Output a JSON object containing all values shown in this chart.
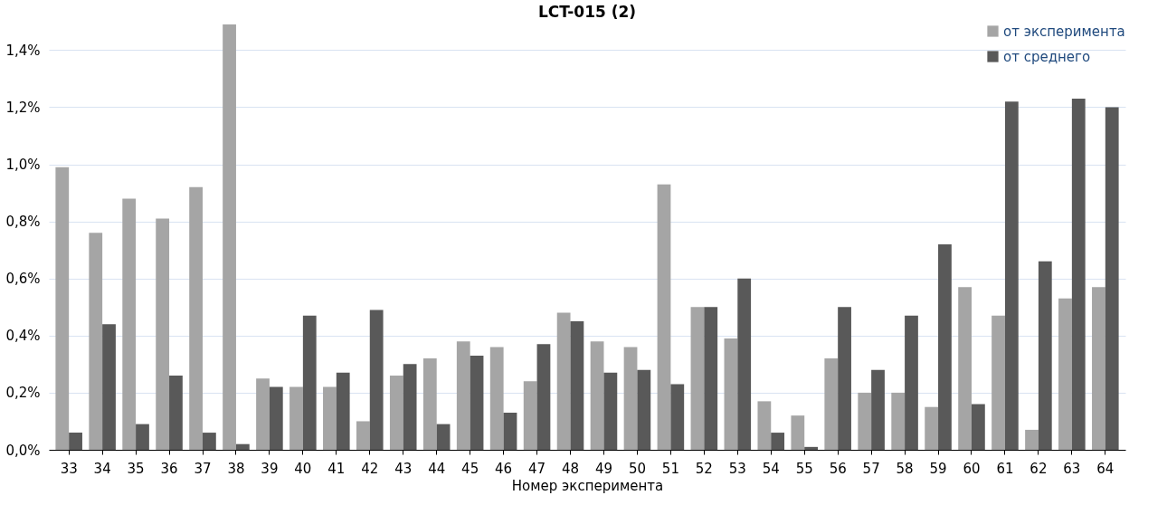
{
  "chart_data": {
    "type": "bar",
    "title": "LCT-015 (2)",
    "xlabel": "Номер эксперимента",
    "categories": [
      "33",
      "34",
      "35",
      "36",
      "37",
      "38",
      "39",
      "40",
      "41",
      "42",
      "43",
      "44",
      "45",
      "46",
      "47",
      "48",
      "49",
      "50",
      "51",
      "52",
      "53",
      "54",
      "55",
      "56",
      "57",
      "58",
      "59",
      "60",
      "61",
      "62",
      "63",
      "64"
    ],
    "series": [
      {
        "name": "от эксперимента",
        "color": "#a5a5a5",
        "values": [
          0.99,
          0.76,
          0.88,
          0.81,
          0.92,
          1.49,
          0.25,
          0.22,
          0.22,
          0.1,
          0.26,
          0.32,
          0.38,
          0.36,
          0.24,
          0.48,
          0.38,
          0.36,
          0.93,
          0.5,
          0.39,
          0.17,
          0.12,
          0.32,
          0.2,
          0.2,
          0.15,
          0.57,
          0.47,
          0.07,
          0.53,
          0.57
        ]
      },
      {
        "name": "от среднего",
        "color": "#595959",
        "values": [
          0.06,
          0.44,
          0.09,
          0.26,
          0.06,
          0.02,
          0.22,
          0.47,
          0.27,
          0.49,
          0.3,
          0.09,
          0.33,
          0.13,
          0.37,
          0.45,
          0.27,
          0.28,
          0.23,
          0.5,
          0.6,
          0.06,
          0.01,
          0.5,
          0.28,
          0.47,
          0.72,
          0.16,
          1.22,
          0.66,
          1.23,
          1.2
        ]
      }
    ],
    "ylim": [
      0,
      1.49
    ],
    "yticks": [
      {
        "value": 0,
        "label": "0,0%"
      },
      {
        "value": 0.2,
        "label": "0,2%"
      },
      {
        "value": 0.4,
        "label": "0,4%"
      },
      {
        "value": 0.6,
        "label": "0,6%"
      },
      {
        "value": 0.8,
        "label": "0,8%"
      },
      {
        "value": 1.0,
        "label": "1,0%"
      },
      {
        "value": 1.2,
        "label": "1,2%"
      },
      {
        "value": 1.4,
        "label": "1,4%"
      }
    ],
    "grid": "y",
    "legend": "top right"
  }
}
